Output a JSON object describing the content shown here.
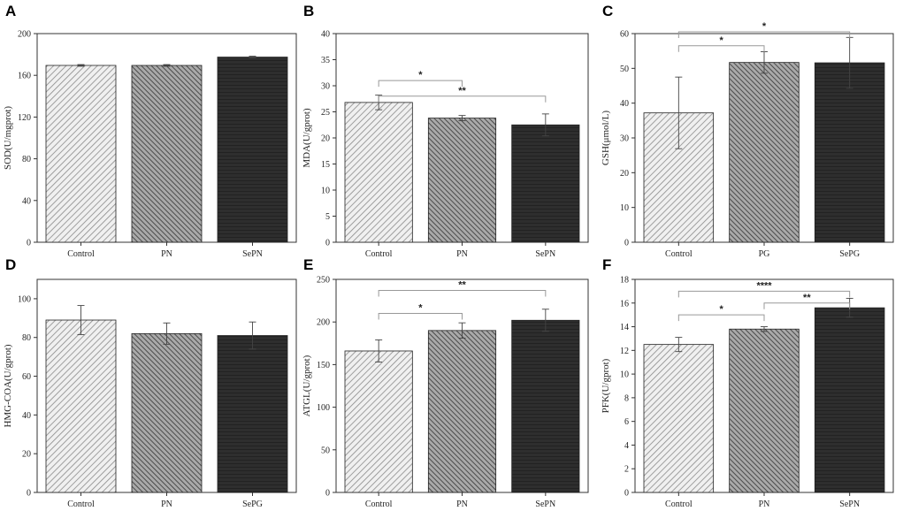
{
  "chart_data": [
    {
      "panel": "A",
      "type": "bar",
      "ylabel": "SOD(U/mgprot)",
      "categories": [
        "Control",
        "PN",
        "SePN"
      ],
      "values": [
        169.5,
        169.5,
        177.5
      ],
      "errors": [
        0.8,
        0.8,
        0.8
      ],
      "ylim": [
        0,
        200
      ],
      "yticks": [
        0,
        40,
        80,
        120,
        160,
        200
      ],
      "fills": [
        "light-hatch",
        "medium-hatch",
        "dark-hatch"
      ],
      "significance": []
    },
    {
      "panel": "B",
      "type": "bar",
      "ylabel": "MDA(U/gprot)",
      "categories": [
        "Control",
        "PN",
        "SePN"
      ],
      "values": [
        26.8,
        23.8,
        22.5
      ],
      "errors": [
        1.4,
        0.5,
        2.1
      ],
      "ylim": [
        0,
        40
      ],
      "yticks": [
        0,
        5,
        10,
        15,
        20,
        25,
        30,
        35,
        40
      ],
      "fills": [
        "light-hatch",
        "medium-hatch",
        "dark-hatch"
      ],
      "significance": [
        {
          "from": 0,
          "to": 1,
          "label": "*",
          "level": 31
        },
        {
          "from": 0,
          "to": 2,
          "label": "**",
          "level": 28
        }
      ]
    },
    {
      "panel": "C",
      "type": "bar",
      "ylabel": "GSH(μmol/L)",
      "categories": [
        "Control",
        "PG",
        "SePG"
      ],
      "values": [
        37.2,
        51.7,
        51.6
      ],
      "errors": [
        10.3,
        3.1,
        7.3
      ],
      "ylim": [
        0,
        60
      ],
      "yticks": [
        0,
        10,
        20,
        30,
        40,
        50,
        60
      ],
      "fills": [
        "light-hatch",
        "medium-hatch",
        "dark-hatch"
      ],
      "significance": [
        {
          "from": 0,
          "to": 1,
          "label": "*",
          "level": 56.5
        },
        {
          "from": 0,
          "to": 2,
          "label": "*",
          "level": 60.5
        }
      ]
    },
    {
      "panel": "D",
      "type": "bar",
      "ylabel": "HMG-COA(U/gprot)",
      "categories": [
        "Control",
        "PN",
        "SePG"
      ],
      "values": [
        89,
        82,
        81
      ],
      "errors": [
        7.5,
        5.5,
        7
      ],
      "ylim": [
        0,
        110
      ],
      "yticks": [
        0,
        20,
        40,
        60,
        80,
        100
      ],
      "fills": [
        "light-hatch",
        "medium-hatch",
        "dark-hatch"
      ],
      "significance": []
    },
    {
      "panel": "E",
      "type": "bar",
      "ylabel": "ATGL(U/gprot)",
      "categories": [
        "Control",
        "PN",
        "SePN"
      ],
      "values": [
        166,
        190,
        202
      ],
      "errors": [
        13,
        9,
        13
      ],
      "ylim": [
        0,
        250
      ],
      "yticks": [
        0,
        50,
        100,
        150,
        200,
        250
      ],
      "fills": [
        "light-hatch",
        "medium-hatch",
        "dark-hatch"
      ],
      "significance": [
        {
          "from": 0,
          "to": 1,
          "label": "*",
          "level": 210
        },
        {
          "from": 0,
          "to": 2,
          "label": "**",
          "level": 237
        }
      ]
    },
    {
      "panel": "F",
      "type": "bar",
      "ylabel": "PFK(U/gprot)",
      "categories": [
        "Control",
        "PN",
        "SePN"
      ],
      "values": [
        12.5,
        13.8,
        15.6
      ],
      "errors": [
        0.6,
        0.2,
        0.8
      ],
      "ylim": [
        0,
        18
      ],
      "yticks": [
        0,
        2,
        4,
        6,
        8,
        10,
        12,
        14,
        16,
        18
      ],
      "fills": [
        "light-hatch",
        "medium-hatch",
        "dark-hatch"
      ],
      "significance": [
        {
          "from": 0,
          "to": 1,
          "label": "*",
          "level": 15
        },
        {
          "from": 1,
          "to": 2,
          "label": "**",
          "level": 16
        },
        {
          "from": 0,
          "to": 2,
          "label": "****",
          "level": 17
        }
      ]
    }
  ]
}
